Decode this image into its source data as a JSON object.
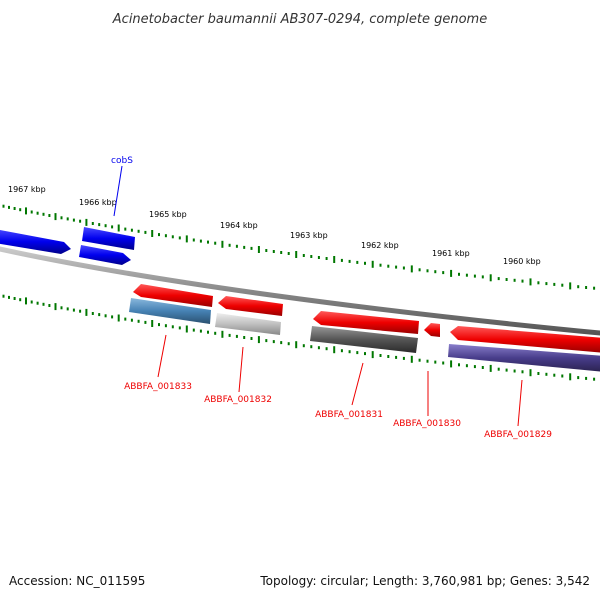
{
  "title": "Acinetobacter baumannii AB307-0294, complete genome",
  "footer": {
    "accession": "Accession: NC_011595",
    "summary": "Topology: circular; Length: 3,760,981 bp; Genes: 3,542"
  },
  "ruler": {
    "unit": "kbp",
    "labels": [
      "1967 kbp",
      "1966 kbp",
      "1965 kbp",
      "1964 kbp",
      "1963 kbp",
      "1962 kbp",
      "1961 kbp",
      "1960 kbp"
    ]
  },
  "genes": [
    {
      "label": "cobS",
      "strand": "forward",
      "color": "#0000ee"
    },
    {
      "label": "ABBFA_001833",
      "strand": "reverse",
      "color": "#ee0000"
    },
    {
      "label": "ABBFA_001832",
      "strand": "reverse",
      "color": "#ee0000"
    },
    {
      "label": "ABBFA_001831",
      "strand": "reverse",
      "color": "#ee0000"
    },
    {
      "label": "ABBFA_001830",
      "strand": "reverse",
      "color": "#ee0000"
    },
    {
      "label": "ABBFA_001829",
      "strand": "reverse",
      "color": "#ee0000"
    }
  ],
  "colors": {
    "forward_strand": "#0000ee",
    "reverse_strand": "#ee0000",
    "ruler_ticks": "#007700",
    "backbone": "#888888",
    "cog_bar_1": "#4682b4",
    "cog_bar_2": "#c0c0c0",
    "cog_bar_3": "#555555",
    "cog_bar_4": "#483d8b"
  }
}
